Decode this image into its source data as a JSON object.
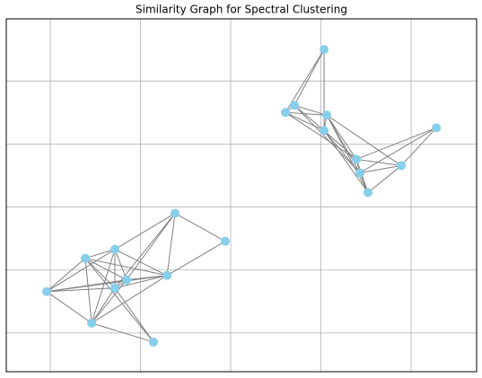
{
  "chart_data": {
    "type": "network",
    "title": "Similarity Graph for Spectral Clustering",
    "x": [
      -0.617,
      -0.06,
      -1.612,
      -1.284,
      -2.04,
      -1.154,
      -1.284,
      -0.706,
      -1.542,
      -0.856,
      1.035,
      0.706,
      0.607,
      1.065,
      1.035,
      2.279,
      1.393,
      1.891,
      1.433,
      1.522
    ],
    "y": [
      -0.1,
      -0.543,
      -0.814,
      -0.671,
      -1.343,
      -1.157,
      -1.286,
      -1.086,
      -1.843,
      -2.143,
      2.5,
      1.614,
      1.5,
      1.457,
      1.214,
      1.257,
      0.757,
      0.657,
      0.543,
      0.229
    ],
    "edges": [
      [
        4,
        2
      ],
      [
        4,
        3
      ],
      [
        4,
        6
      ],
      [
        4,
        7
      ],
      [
        4,
        8
      ],
      [
        4,
        5
      ],
      [
        2,
        3
      ],
      [
        2,
        5
      ],
      [
        2,
        6
      ],
      [
        2,
        7
      ],
      [
        2,
        8
      ],
      [
        2,
        9
      ],
      [
        3,
        5
      ],
      [
        3,
        6
      ],
      [
        3,
        7
      ],
      [
        3,
        8
      ],
      [
        3,
        0
      ],
      [
        0,
        5
      ],
      [
        0,
        6
      ],
      [
        0,
        7
      ],
      [
        0,
        1
      ],
      [
        1,
        7
      ],
      [
        5,
        6
      ],
      [
        5,
        7
      ],
      [
        5,
        8
      ],
      [
        6,
        7
      ],
      [
        6,
        8
      ],
      [
        6,
        9
      ],
      [
        7,
        8
      ],
      [
        8,
        9
      ],
      [
        10,
        11
      ],
      [
        10,
        12
      ],
      [
        10,
        14
      ],
      [
        11,
        12
      ],
      [
        11,
        13
      ],
      [
        11,
        14
      ],
      [
        11,
        18
      ],
      [
        12,
        13
      ],
      [
        12,
        14
      ],
      [
        12,
        16
      ],
      [
        13,
        14
      ],
      [
        13,
        16
      ],
      [
        13,
        18
      ],
      [
        13,
        17
      ],
      [
        13,
        19
      ],
      [
        14,
        16
      ],
      [
        14,
        18
      ],
      [
        14,
        19
      ],
      [
        15,
        16
      ],
      [
        15,
        18
      ],
      [
        15,
        17
      ],
      [
        16,
        17
      ],
      [
        16,
        18
      ],
      [
        16,
        19
      ],
      [
        17,
        18
      ],
      [
        17,
        19
      ],
      [
        18,
        19
      ]
    ],
    "node_color": "#87ceeb",
    "edge_color": "#808080",
    "xlim": [
      -2.488,
      2.726
    ],
    "ylim": [
      -2.614,
      2.986
    ],
    "xticks": [
      -2,
      -1,
      0,
      1,
      2
    ],
    "yticks": [
      -2,
      -1,
      0,
      1,
      2
    ],
    "grid": true
  }
}
